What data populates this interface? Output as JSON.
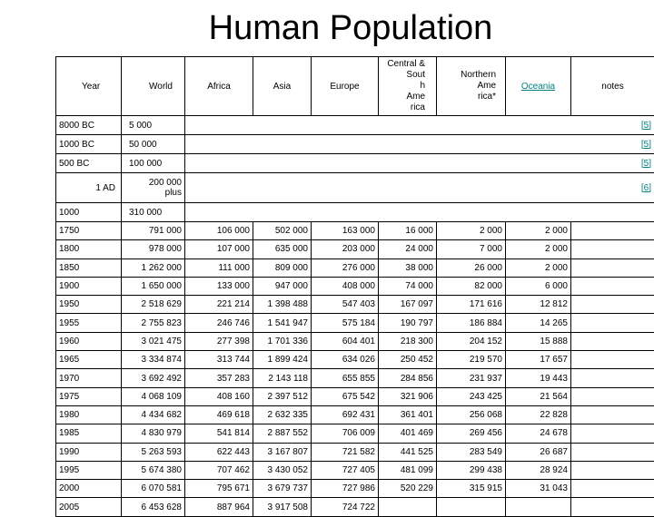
{
  "title": "Human Population",
  "headers": {
    "year": "Year",
    "world": "World",
    "africa": "Africa",
    "asia": "Asia",
    "europe": "Europe",
    "csa_1": "Central &",
    "csa_2": "Sout",
    "csa_3": "h",
    "csa_4": "Ame",
    "csa_5": "rica",
    "na_1": "Northern",
    "na_2": "Ame",
    "na_3": "rica*",
    "oceania": "Oceania",
    "notes": "notes"
  },
  "early_rows": [
    {
      "year": "8000 BC",
      "world": "5 000",
      "ref": "[5]"
    },
    {
      "year": "1000 BC",
      "world": "50 000",
      "ref": "[5]"
    },
    {
      "year": "500 BC",
      "world": "100 000",
      "ref": "[5]"
    },
    {
      "year": "1 AD",
      "world_1": "200 000",
      "world_2": "plus",
      "ref": "[6]"
    },
    {
      "year": "1000",
      "world": "310 000",
      "ref": ""
    }
  ],
  "rows": [
    {
      "year": "1750",
      "world": "791 000",
      "africa": "106 000",
      "asia": "502 000",
      "europe": "163 000",
      "csa": "16 000",
      "na": "2 000",
      "oceania": "2 000"
    },
    {
      "year": "1800",
      "world": "978 000",
      "africa": "107 000",
      "asia": "635 000",
      "europe": "203 000",
      "csa": "24 000",
      "na": "7 000",
      "oceania": "2 000"
    },
    {
      "year": "1850",
      "world": "1 262 000",
      "africa": "111 000",
      "asia": "809 000",
      "europe": "276 000",
      "csa": "38 000",
      "na": "26 000",
      "oceania": "2 000"
    },
    {
      "year": "1900",
      "world": "1 650 000",
      "africa": "133 000",
      "asia": "947 000",
      "europe": "408 000",
      "csa": "74 000",
      "na": "82 000",
      "oceania": "6 000"
    },
    {
      "year": "1950",
      "world": "2 518 629",
      "africa": "221 214",
      "asia": "1 398 488",
      "europe": "547 403",
      "csa": "167 097",
      "na": "171 616",
      "oceania": "12 812"
    },
    {
      "year": "1955",
      "world": "2 755 823",
      "africa": "246 746",
      "asia": "1 541 947",
      "europe": "575 184",
      "csa": "190 797",
      "na": "186 884",
      "oceania": "14 265"
    },
    {
      "year": "1960",
      "world": "3 021 475",
      "africa": "277 398",
      "asia": "1 701 336",
      "europe": "604 401",
      "csa": "218 300",
      "na": "204 152",
      "oceania": "15 888"
    },
    {
      "year": "1965",
      "world": "3 334 874",
      "africa": "313 744",
      "asia": "1 899 424",
      "europe": "634 026",
      "csa": "250 452",
      "na": "219 570",
      "oceania": "17 657"
    },
    {
      "year": "1970",
      "world": "3 692 492",
      "africa": "357 283",
      "asia": "2 143 118",
      "europe": "655 855",
      "csa": "284 856",
      "na": "231 937",
      "oceania": "19 443"
    },
    {
      "year": "1975",
      "world": "4 068 109",
      "africa": "408 160",
      "asia": "2 397 512",
      "europe": "675 542",
      "csa": "321 906",
      "na": "243 425",
      "oceania": "21 564"
    },
    {
      "year": "1980",
      "world": "4 434 682",
      "africa": "469 618",
      "asia": "2 632 335",
      "europe": "692 431",
      "csa": "361 401",
      "na": "256 068",
      "oceania": "22 828"
    },
    {
      "year": "1985",
      "world": "4 830 979",
      "africa": "541 814",
      "asia": "2 887 552",
      "europe": "706 009",
      "csa": "401 469",
      "na": "269 456",
      "oceania": "24 678"
    },
    {
      "year": "1990",
      "world": "5 263 593",
      "africa": "622 443",
      "asia": "3 167 807",
      "europe": "721 582",
      "csa": "441 525",
      "na": "283 549",
      "oceania": "26 687"
    },
    {
      "year": "1995",
      "world": "5 674 380",
      "africa": "707 462",
      "asia": "3 430 052",
      "europe": "727 405",
      "csa": "481 099",
      "na": "299 438",
      "oceania": "28 924"
    },
    {
      "year": "2000",
      "world": "6 070 581",
      "africa": "795 671",
      "asia": "3 679 737",
      "europe": "727 986",
      "csa": "520 229",
      "na": "315 915",
      "oceania": "31 043"
    },
    {
      "year": "2005",
      "world": "6 453 628",
      "africa": "887 964",
      "asia": "3 917 508",
      "europe": "724 722",
      "csa": "",
      "na": "",
      "oceania": ""
    }
  ]
}
